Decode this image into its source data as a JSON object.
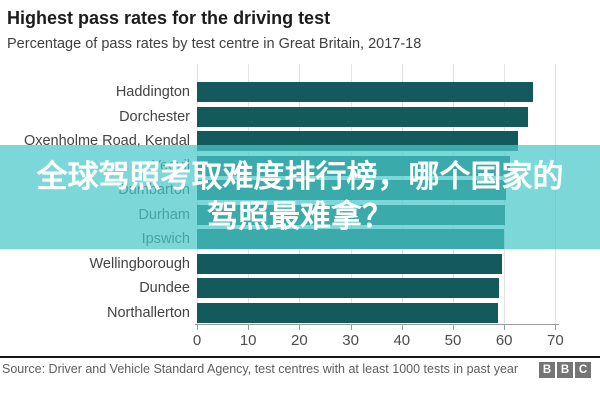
{
  "header": {
    "title": "Highest pass rates for the driving test",
    "subtitle": "Percentage of pass rates by test centre in Great Britain, 2017-18"
  },
  "chart_data": {
    "type": "bar",
    "orientation": "horizontal",
    "title": "Highest pass rates for the driving test",
    "subtitle": "Percentage of pass rates by test centre in Great Britain, 2017-18",
    "categories": [
      "Haddington",
      "Dorchester",
      "Oxenholme Road, Kendal",
      "Yeovil",
      "Dumbarton",
      "Durham",
      "Ipswich",
      "Wellingborough",
      "Dundee",
      "Northallerton"
    ],
    "values": [
      65.7,
      64.6,
      62.7,
      61.1,
      60.4,
      60.1,
      59.9,
      59.6,
      58.9,
      58.7
    ],
    "xlabel": "",
    "ylabel": "",
    "xlim": [
      0,
      70
    ],
    "xticks": [
      0,
      10,
      20,
      30,
      40,
      50,
      60,
      70
    ],
    "grid": true,
    "bar_color": "#14595c",
    "gridline_color": "#e2e2e2"
  },
  "overlay": {
    "line1": "全球驾照考取难度排行榜，哪个国家的",
    "line2": "驾照最难拿？",
    "background_color": "#49C9C9",
    "text_color": "#ffffff"
  },
  "footer": {
    "source": "Source: Driver and Vehicle Standard Agency, test centres with at least 1000 tests in past year",
    "logo_letters": [
      "B",
      "B",
      "C"
    ]
  }
}
